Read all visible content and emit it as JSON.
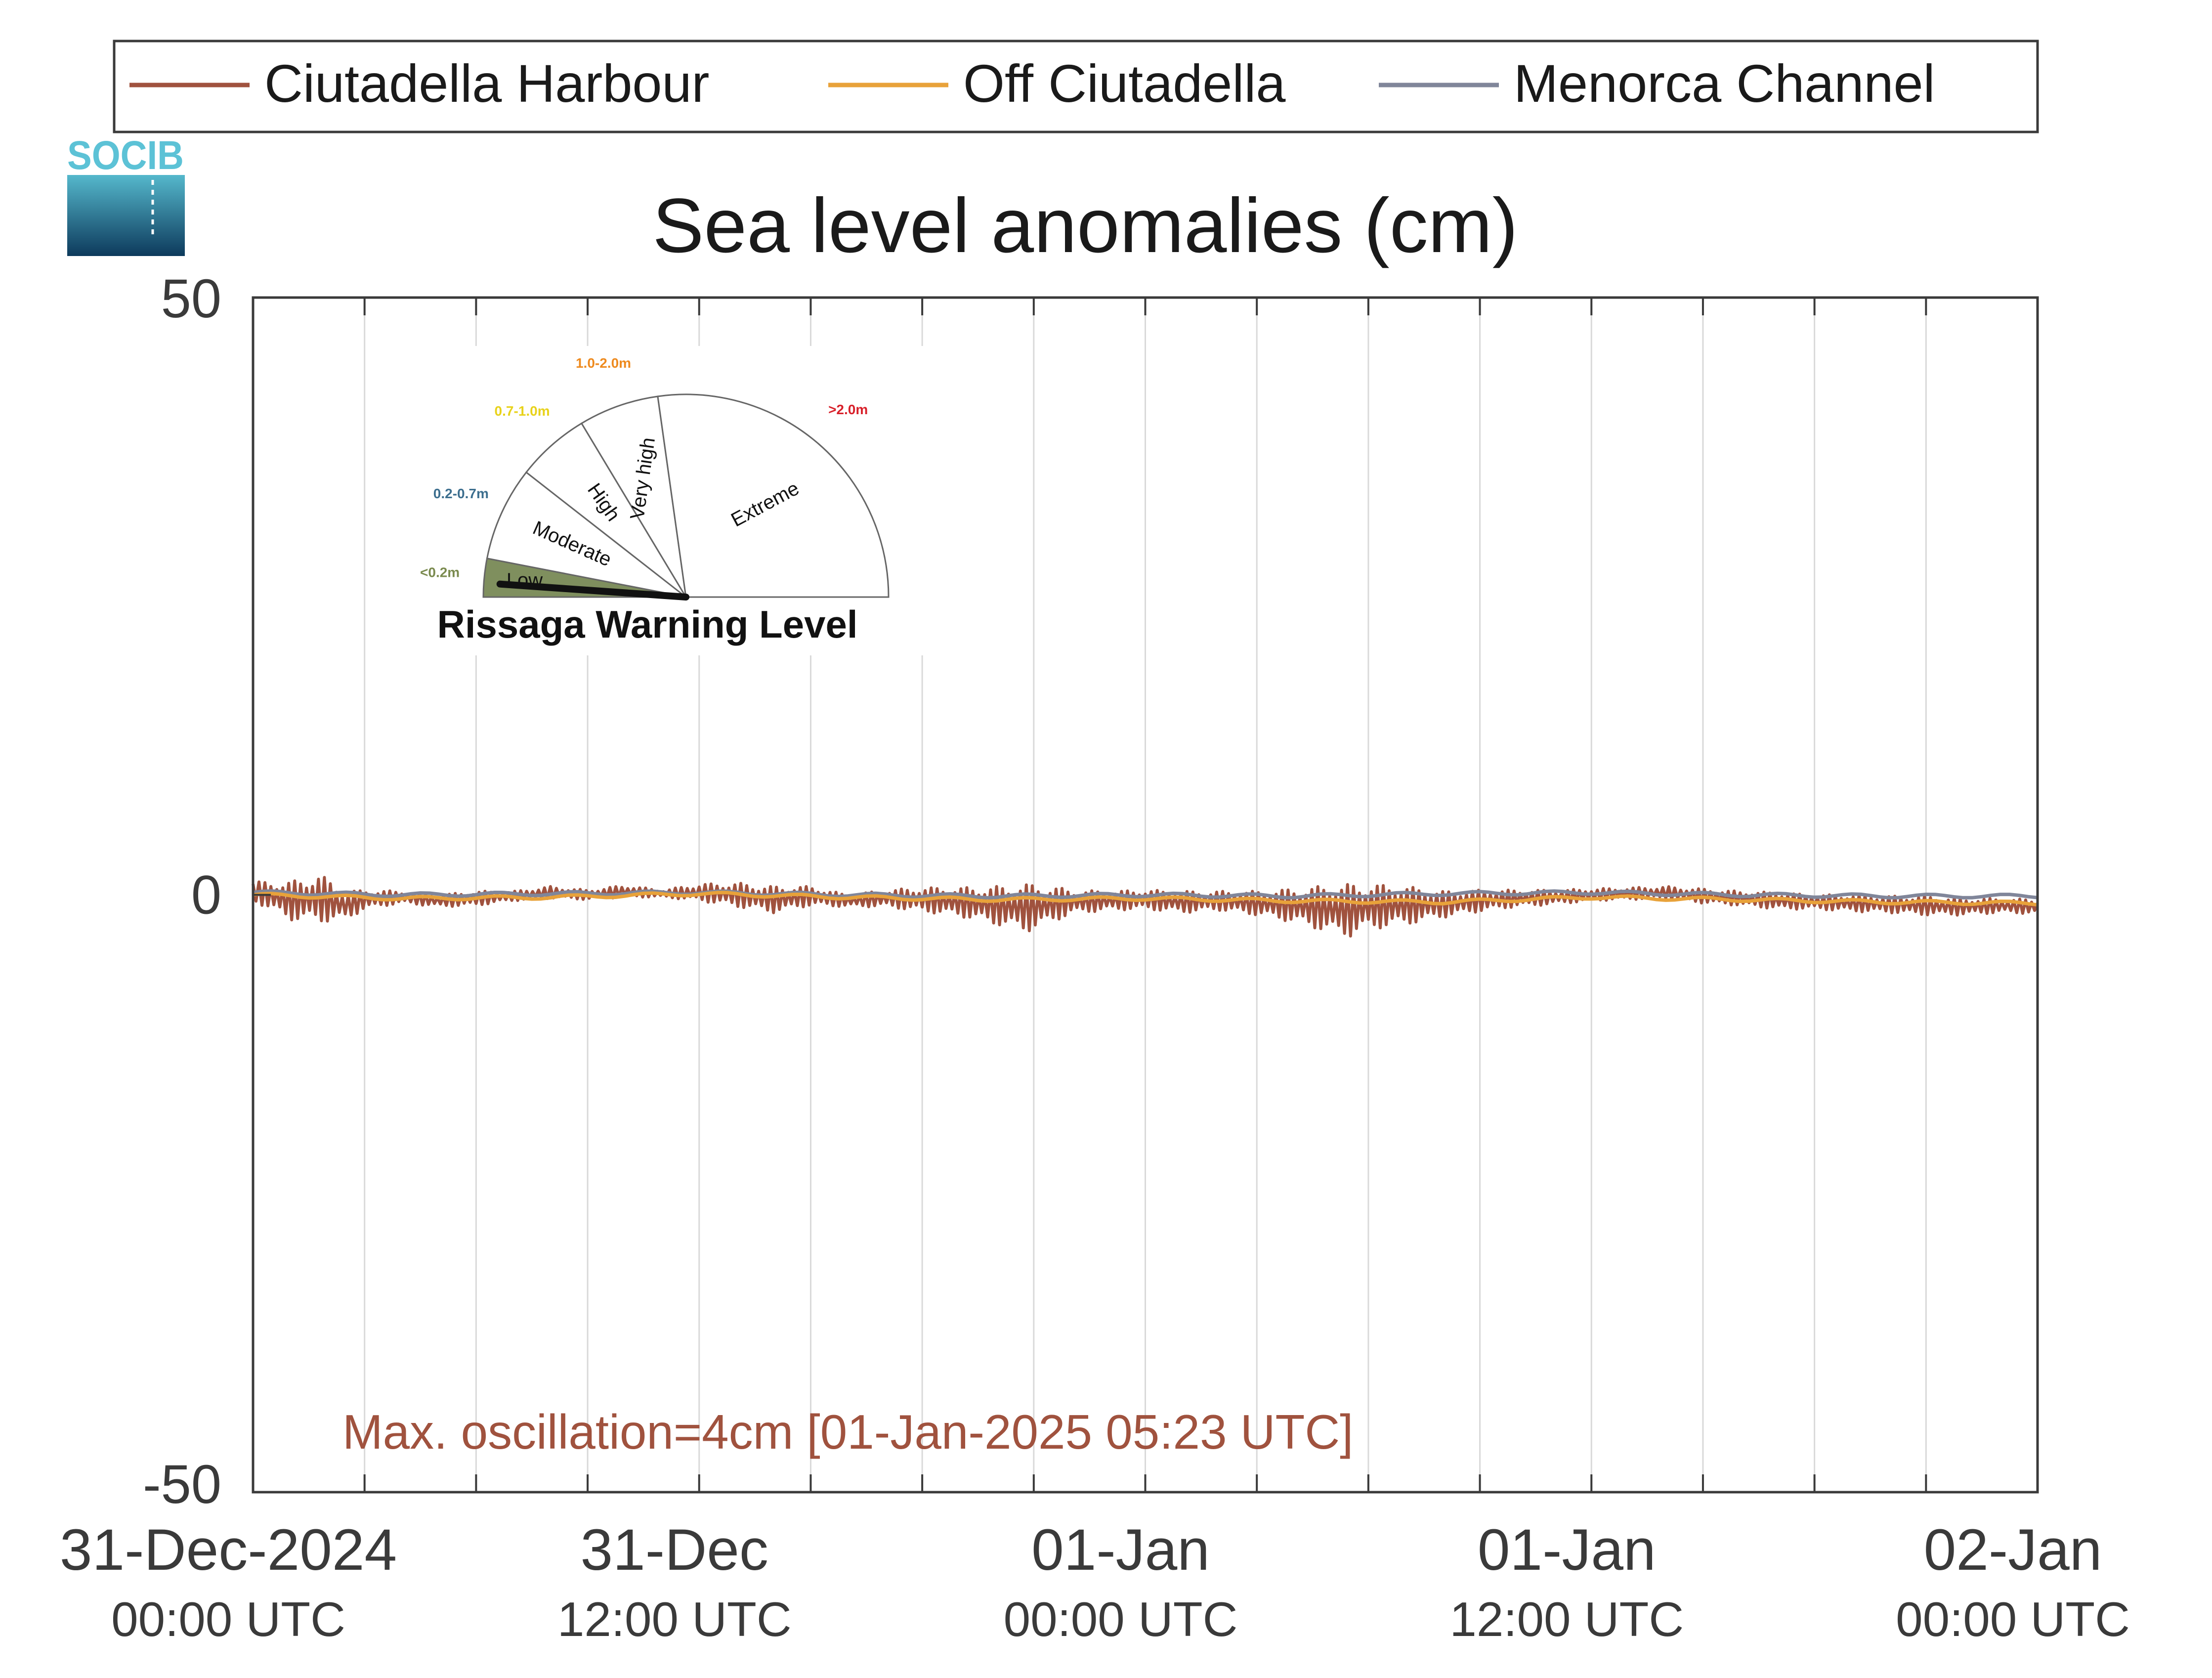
{
  "logo": {
    "text": "SOCIB"
  },
  "legend": {
    "placement": "top",
    "items": [
      {
        "label": "Ciutadella Harbour",
        "color": "#a0523e"
      },
      {
        "label": "Off Ciutadella",
        "color": "#e8a23a"
      },
      {
        "label": "Menorca Channel",
        "color": "#80869a"
      }
    ]
  },
  "gauge": {
    "title": "Rissaga Warning Level",
    "current_level": "Low",
    "sectors": [
      {
        "label": "Low",
        "range": "<0.2m",
        "range_color": "#7a8a4e",
        "fill": "#7f8f5e"
      },
      {
        "label": "Moderate",
        "range": "0.2-0.7m",
        "range_color": "#3c6e8e",
        "fill": "#ffffff"
      },
      {
        "label": "High",
        "range": "0.7-1.0m",
        "range_color": "#e8d21a",
        "fill": "#ffffff"
      },
      {
        "label": "Very high",
        "range": "1.0-2.0m",
        "range_color": "#ee8a1e",
        "fill": "#ffffff"
      },
      {
        "label": "Extreme",
        "range": ">2.0m",
        "range_color": "#d8202a",
        "fill": "#ffffff"
      }
    ]
  },
  "annotation": {
    "text": "Max. oscillation=4cm [01-Jan-2025 05:23 UTC]",
    "color": "#a0523e"
  },
  "chart_data": {
    "type": "line",
    "title": "Sea level anomalies (cm)",
    "xlabel": "",
    "ylabel": "",
    "ylim": [
      -50,
      50
    ],
    "yticks": [
      -50,
      0,
      50
    ],
    "xlim_hours": [
      0,
      48
    ],
    "grid": "vertical",
    "x_gridlines_hours": [
      3,
      6,
      9,
      12,
      15,
      18,
      21,
      24,
      27,
      30,
      33,
      36,
      39,
      42,
      45
    ],
    "xticks": [
      {
        "hours": 0,
        "date": "31-Dec-2024",
        "time": "00:00 UTC"
      },
      {
        "hours": 12,
        "date": "31-Dec",
        "time": "12:00 UTC"
      },
      {
        "hours": 24,
        "date": "01-Jan",
        "time": "00:00 UTC"
      },
      {
        "hours": 36,
        "date": "01-Jan",
        "time": "12:00 UTC"
      },
      {
        "hours": 48,
        "date": "02-Jan",
        "time": "00:00 UTC"
      }
    ],
    "series": [
      {
        "name": "Ciutadella Harbour",
        "color": "#a0523e",
        "x_hours": [
          0,
          1,
          1.8,
          2.5,
          3,
          4,
          5,
          6,
          7,
          8,
          9,
          10,
          11,
          12,
          13,
          14,
          15,
          16,
          17,
          18,
          19,
          20,
          20.8,
          21.5,
          22,
          23,
          24,
          25,
          26,
          27,
          28,
          29,
          29.5,
          30,
          31,
          32,
          33,
          34,
          35,
          36,
          37,
          38,
          39,
          40,
          41,
          42,
          43,
          44,
          45,
          46,
          47,
          48
        ],
        "y_cm": [
          0.3,
          -0.5,
          -0.3,
          -0.9,
          -0.4,
          -0.2,
          -0.5,
          -0.3,
          -0.1,
          0.2,
          0.0,
          0.3,
          0.1,
          0.2,
          0.0,
          -0.4,
          -0.1,
          -0.5,
          -0.3,
          -0.4,
          -0.6,
          -0.9,
          -1.1,
          -0.8,
          -0.6,
          -0.5,
          -0.4,
          -0.6,
          -0.5,
          -0.7,
          -0.9,
          -1.2,
          -1.3,
          -1.0,
          -0.9,
          -0.8,
          -0.5,
          -0.3,
          -0.2,
          0.0,
          0.1,
          0.2,
          -0.1,
          -0.3,
          -0.5,
          -0.6,
          -0.7,
          -0.8,
          -0.9,
          -1.0,
          -0.9,
          -1.0
        ],
        "oscillation_amplitude_cm": [
          0.8,
          1.6,
          2.0,
          1.2,
          0.8,
          0.5,
          0.5,
          0.6,
          0.4,
          0.5,
          0.4,
          0.5,
          0.3,
          0.7,
          1.0,
          1.1,
          0.8,
          0.5,
          0.7,
          1.0,
          1.2,
          1.6,
          2.0,
          1.5,
          1.0,
          0.8,
          0.8,
          0.9,
          0.8,
          1.0,
          1.4,
          2.0,
          2.2,
          1.9,
          1.6,
          1.1,
          0.9,
          0.7,
          0.6,
          0.5,
          0.5,
          0.5,
          0.6,
          0.6,
          0.7,
          0.6,
          0.7,
          0.7,
          0.8,
          0.7,
          0.6,
          0.6
        ]
      },
      {
        "name": "Off Ciutadella",
        "color": "#e8a23a",
        "x_hours": [
          0,
          4,
          8,
          12,
          16,
          20,
          24,
          28,
          32,
          36,
          40,
          44,
          48
        ],
        "y_cm": [
          0.0,
          -0.3,
          -0.2,
          0.1,
          -0.2,
          -0.4,
          -0.3,
          -0.5,
          -0.6,
          -0.2,
          -0.4,
          -0.6,
          -0.7
        ]
      },
      {
        "name": "Menorca Channel",
        "color": "#80869a",
        "x_hours": [
          0,
          4,
          8,
          12,
          16,
          20,
          24,
          28,
          32,
          36,
          40,
          44,
          48
        ],
        "y_cm": [
          0.2,
          0.0,
          0.1,
          0.2,
          0.0,
          -0.1,
          0.0,
          -0.1,
          0.1,
          0.2,
          0.0,
          -0.1,
          -0.1
        ]
      }
    ]
  }
}
